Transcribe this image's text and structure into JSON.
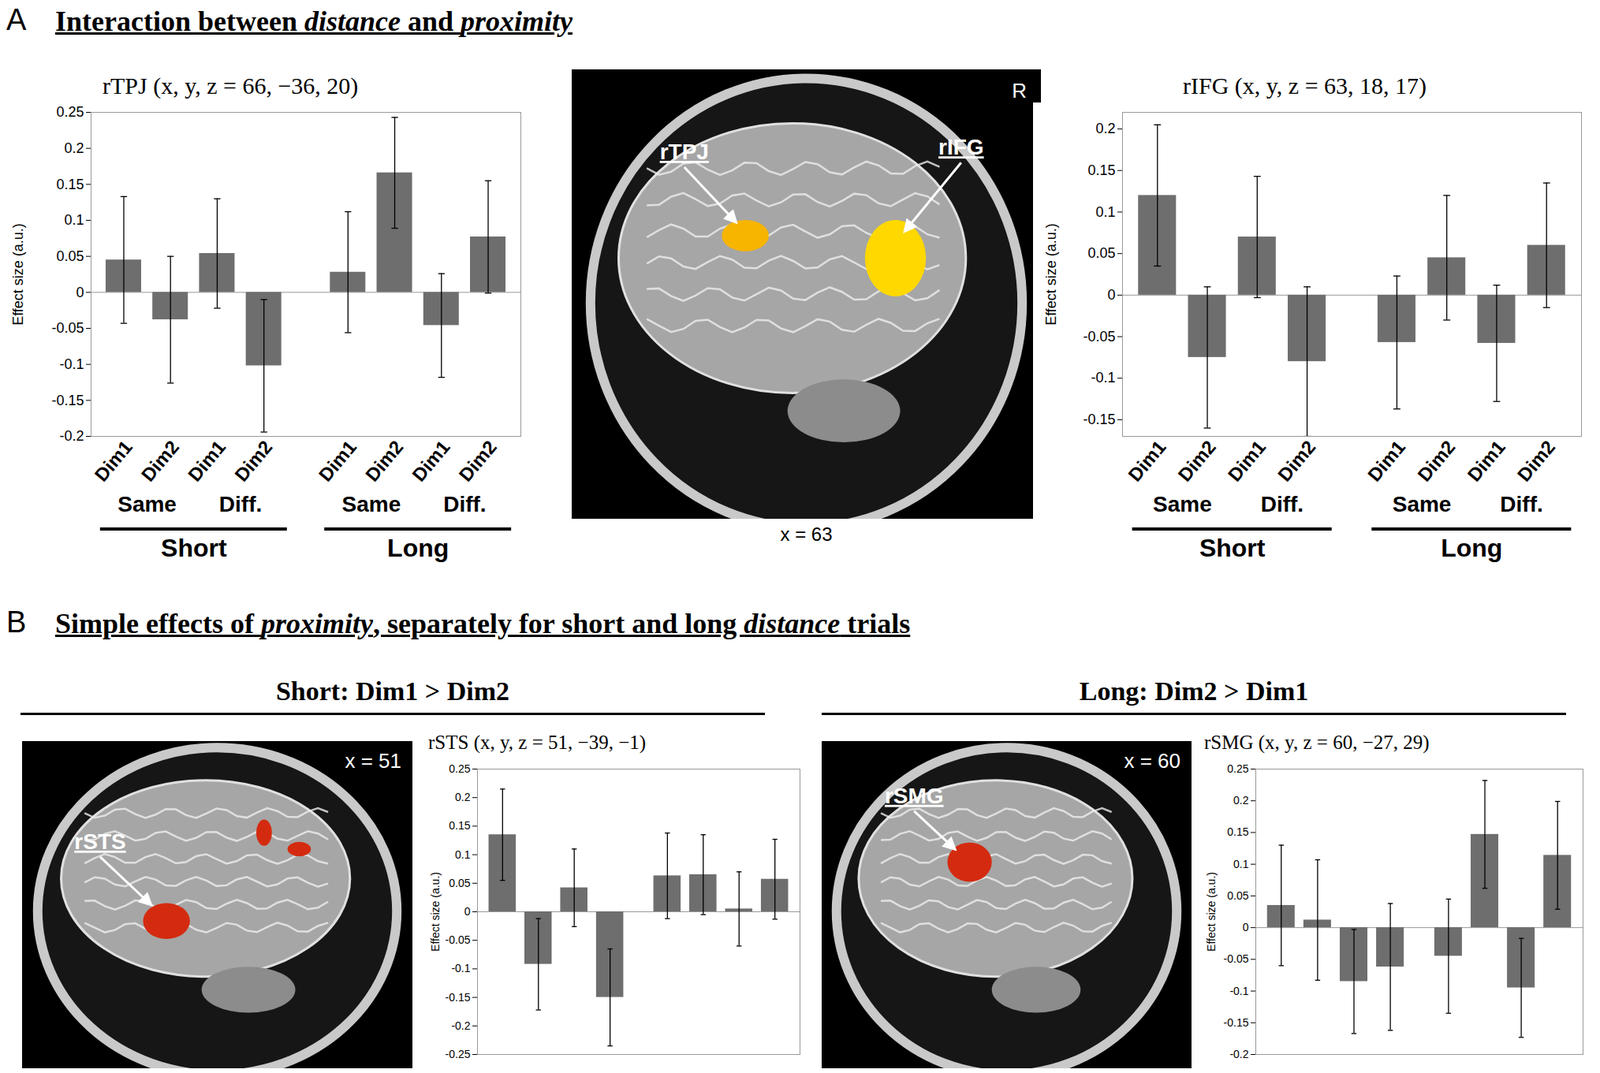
{
  "panels": [
    {
      "letter": "A",
      "heading": [
        {
          "text": "Interaction between "
        },
        {
          "text": "distance",
          "italic": true
        },
        {
          "text": " and "
        },
        {
          "text": "proximity",
          "italic": true
        }
      ]
    },
    {
      "letter": "B",
      "heading": [
        {
          "text": "Simple effects of "
        },
        {
          "text": "proximity",
          "italic": true
        },
        {
          "text": ", separately for short and long "
        },
        {
          "text": "distance",
          "italic": true
        },
        {
          "text": " trials"
        }
      ]
    }
  ],
  "subheadings": [
    "Short: Dim1 > Dim2",
    "Long: Dim2 > Dim1"
  ],
  "images": [
    {
      "slice_label": "x = 63",
      "orientation_label": "R",
      "regions": [
        {
          "label": "rTPJ",
          "color": "#f7b500"
        },
        {
          "label": "rIFG",
          "color": "#ffd800"
        }
      ]
    },
    {
      "slice_label": "x = 51",
      "regions": [
        {
          "label": "rSTS",
          "color": "#d42b10"
        },
        {
          "color": "#d42b10"
        },
        {
          "color": "#d42b10"
        }
      ]
    },
    {
      "slice_label": "x = 60",
      "regions": [
        {
          "label": "rSMG",
          "color": "#d42b10"
        }
      ]
    }
  ],
  "chart_data": [
    {
      "type": "bar",
      "title": "rTPJ (x, y, z = 66, −36, 20)",
      "y_label": "Effect size (a.u.)",
      "ylim": [
        -0.2,
        0.25
      ],
      "yticks": [
        -0.2,
        -0.15,
        -0.1,
        -0.05,
        0,
        0.05,
        0.1,
        0.15,
        0.2,
        0.25
      ],
      "color": "#6e6e6e",
      "groups": [
        {
          "name": "Short",
          "subgroups": [
            {
              "name": "Same",
              "categories": [
                "Dim1",
                "Dim2"
              ],
              "values": [
                0.045,
                -0.038
              ],
              "errors": [
                0.088,
                0.088
              ]
            },
            {
              "name": "Diff.",
              "categories": [
                "Dim1",
                "Dim2"
              ],
              "values": [
                0.054,
                -0.102
              ],
              "errors": [
                0.076,
                0.092
              ]
            }
          ]
        },
        {
          "name": "Long",
          "subgroups": [
            {
              "name": "Same",
              "categories": [
                "Dim1",
                "Dim2"
              ],
              "values": [
                0.028,
                0.166
              ],
              "errors": [
                0.084,
                0.077
              ]
            },
            {
              "name": "Diff.",
              "categories": [
                "Dim1",
                "Dim2"
              ],
              "values": [
                -0.046,
                0.077
              ],
              "errors": [
                0.072,
                0.078
              ]
            }
          ]
        }
      ]
    },
    {
      "type": "bar",
      "title": "rIFG (x, y, z = 63, 18, 17)",
      "y_label": "Effect size (a.u.)",
      "ylim": [
        -0.17,
        0.22
      ],
      "yticks": [
        -0.15,
        -0.1,
        -0.05,
        0,
        0.05,
        0.1,
        0.15,
        0.2
      ],
      "color": "#6e6e6e",
      "groups": [
        {
          "name": "Short",
          "subgroups": [
            {
              "name": "Same",
              "categories": [
                "Dim1",
                "Dim2"
              ],
              "values": [
                0.12,
                -0.075
              ],
              "errors": [
                0.085,
                0.085
              ]
            },
            {
              "name": "Diff.",
              "categories": [
                "Dim1",
                "Dim2"
              ],
              "values": [
                0.07,
                -0.08
              ],
              "errors": [
                0.073,
                0.09
              ]
            }
          ]
        },
        {
          "name": "Long",
          "subgroups": [
            {
              "name": "Same",
              "categories": [
                "Dim1",
                "Dim2"
              ],
              "values": [
                -0.057,
                0.045
              ],
              "errors": [
                0.08,
                0.075
              ]
            },
            {
              "name": "Diff.",
              "categories": [
                "Dim1",
                "Dim2"
              ],
              "values": [
                -0.058,
                0.06
              ],
              "errors": [
                0.07,
                0.075
              ]
            }
          ]
        }
      ]
    },
    {
      "type": "bar",
      "title": "rSTS (x, y, z = 51, −39, −1)",
      "y_label": "Effect size (a.u.)",
      "tick_labels": "y",
      "ylim": [
        -0.25,
        0.25
      ],
      "yticks": [
        -0.25,
        -0.2,
        -0.15,
        -0.1,
        -0.05,
        0,
        0.05,
        0.1,
        0.15,
        0.2,
        0.25
      ],
      "color": "#6e6e6e",
      "groups": [
        {
          "subgroups": [
            {
              "values": [
                0.135,
                -0.092
              ],
              "errors": [
                0.08,
                0.08
              ]
            },
            {
              "values": [
                0.042,
                -0.15
              ],
              "errors": [
                0.068,
                0.085
              ]
            }
          ]
        },
        {
          "subgroups": [
            {
              "values": [
                0.063,
                0.065
              ],
              "errors": [
                0.075,
                0.07
              ]
            },
            {
              "values": [
                0.005,
                0.057
              ],
              "errors": [
                0.065,
                0.07
              ]
            }
          ]
        }
      ]
    },
    {
      "type": "bar",
      "title": "rSMG (x, y, z = 60, −27, 29)",
      "y_label": "Effect size (a.u.)",
      "tick_labels": "y",
      "ylim": [
        -0.2,
        0.25
      ],
      "yticks": [
        -0.2,
        -0.15,
        -0.1,
        -0.05,
        0,
        0.05,
        0.1,
        0.15,
        0.2,
        0.25
      ],
      "color": "#6e6e6e",
      "groups": [
        {
          "subgroups": [
            {
              "values": [
                0.035,
                0.012
              ],
              "errors": [
                0.095,
                0.095
              ]
            },
            {
              "values": [
                -0.085,
                -0.062
              ],
              "errors": [
                0.082,
                0.1
              ]
            }
          ]
        },
        {
          "subgroups": [
            {
              "values": [
                -0.045,
                0.147
              ],
              "errors": [
                0.09,
                0.085
              ]
            },
            {
              "values": [
                -0.095,
                0.114
              ],
              "errors": [
                0.078,
                0.085
              ]
            }
          ]
        }
      ]
    }
  ]
}
